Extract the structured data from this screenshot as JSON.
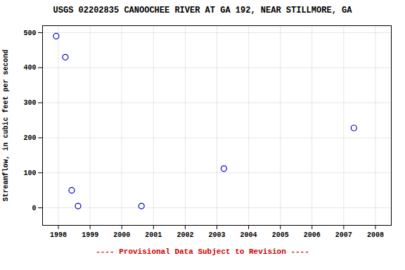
{
  "chart_data": {
    "type": "scatter",
    "title": "USGS 02202835 CANOOCHEE RIVER AT GA 192, NEAR STILLMORE, GA",
    "ylabel": "Streamflow, in cubic feet per second",
    "x": [
      1997.93,
      1998.22,
      1998.42,
      1998.62,
      2000.62,
      2003.22,
      2007.32
    ],
    "values": [
      490,
      430,
      50,
      5,
      5,
      112,
      228
    ],
    "color": "#0000cc",
    "marker": "hollow circle",
    "xlim": [
      1997.5,
      2008.5
    ],
    "xticks": [
      1998,
      1999,
      2000,
      2001,
      2002,
      2003,
      2004,
      2005,
      2006,
      2007,
      2008
    ],
    "ylim": [
      -50,
      520
    ],
    "yticks": [
      0,
      100,
      200,
      300,
      400,
      500
    ],
    "grid": true,
    "annotations": [
      {
        "text": "---- Provisional Data Subject to Revision ----",
        "color": "#cc0000"
      }
    ]
  }
}
